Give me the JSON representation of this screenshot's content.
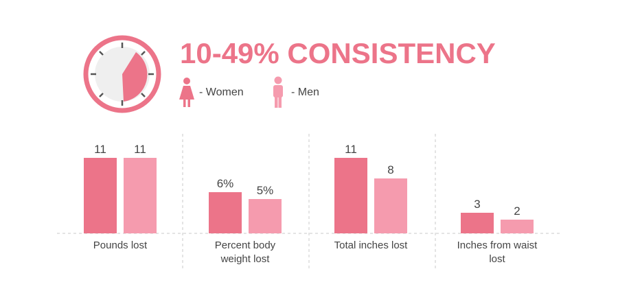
{
  "chart_data": {
    "type": "bar",
    "title": "10-49% CONSISTENCY",
    "categories": [
      "Pounds lost",
      "Percent body weight lost",
      "Total inches lost",
      "Inches from waist lost"
    ],
    "series": [
      {
        "name": "- Women",
        "color": "#ec7489",
        "values": [
          11,
          6,
          11,
          3
        ],
        "value_labels": [
          "11",
          "6%",
          "11",
          "3"
        ]
      },
      {
        "name": "- Men",
        "color": "#f59bae",
        "values": [
          11,
          5,
          8,
          2
        ],
        "value_labels": [
          "11",
          "5%",
          "8",
          "2"
        ]
      }
    ]
  }
}
